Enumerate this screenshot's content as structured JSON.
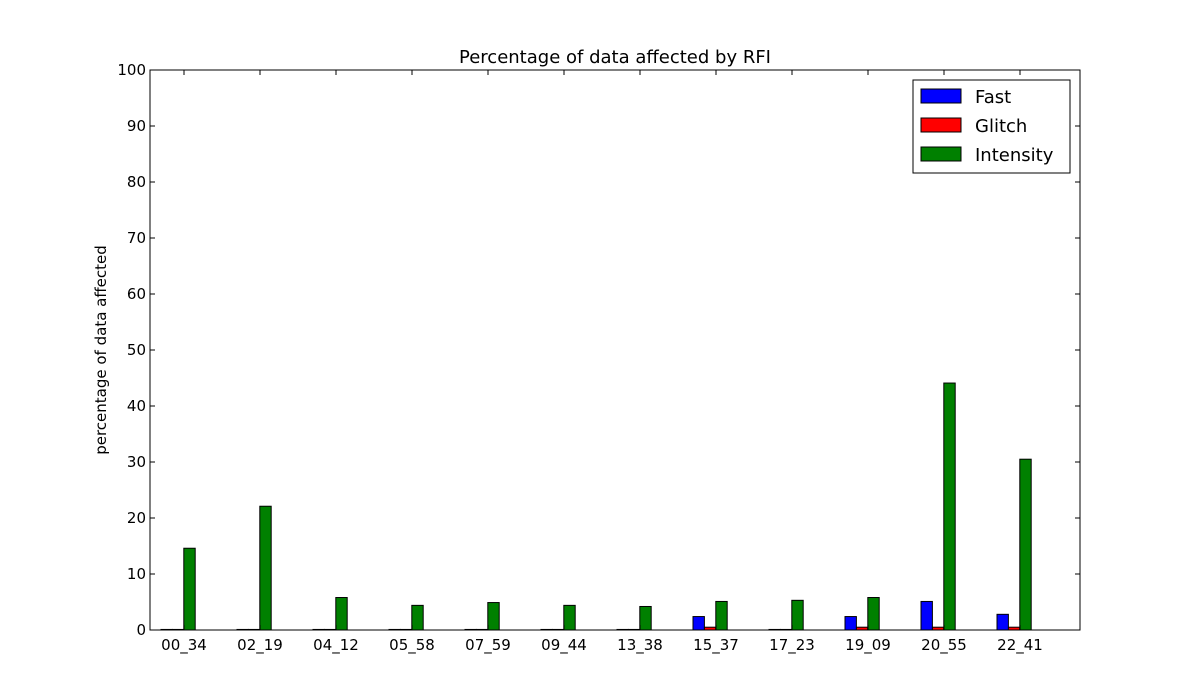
{
  "chart_data": {
    "type": "bar",
    "title": "Percentage of data affected by RFI",
    "xlabel": "",
    "ylabel": "percentage of data affected",
    "ylim": [
      0,
      100
    ],
    "yticks": [
      0,
      10,
      20,
      30,
      40,
      50,
      60,
      70,
      80,
      90,
      100
    ],
    "grid": false,
    "legend_position": "top-right",
    "categories": [
      "00_34",
      "02_19",
      "04_12",
      "05_58",
      "07_59",
      "09_44",
      "13_38",
      "15_37",
      "17_23",
      "19_09",
      "20_55",
      "22_41"
    ],
    "series": [
      {
        "name": "Fast",
        "color": "#0000ff",
        "values": [
          0.1,
          0.1,
          0.1,
          0.1,
          0.1,
          0.1,
          0.1,
          2.4,
          0.1,
          2.4,
          5.1,
          2.8
        ]
      },
      {
        "name": "Glitch",
        "color": "#ff0000",
        "values": [
          0.1,
          0.1,
          0.1,
          0.1,
          0.1,
          0.1,
          0.1,
          0.5,
          0.1,
          0.5,
          0.5,
          0.5
        ]
      },
      {
        "name": "Intensity",
        "color": "#008000",
        "values": [
          14.6,
          22.1,
          5.8,
          4.4,
          4.9,
          4.4,
          4.2,
          5.1,
          5.3,
          5.8,
          44.1,
          30.5
        ]
      }
    ]
  }
}
